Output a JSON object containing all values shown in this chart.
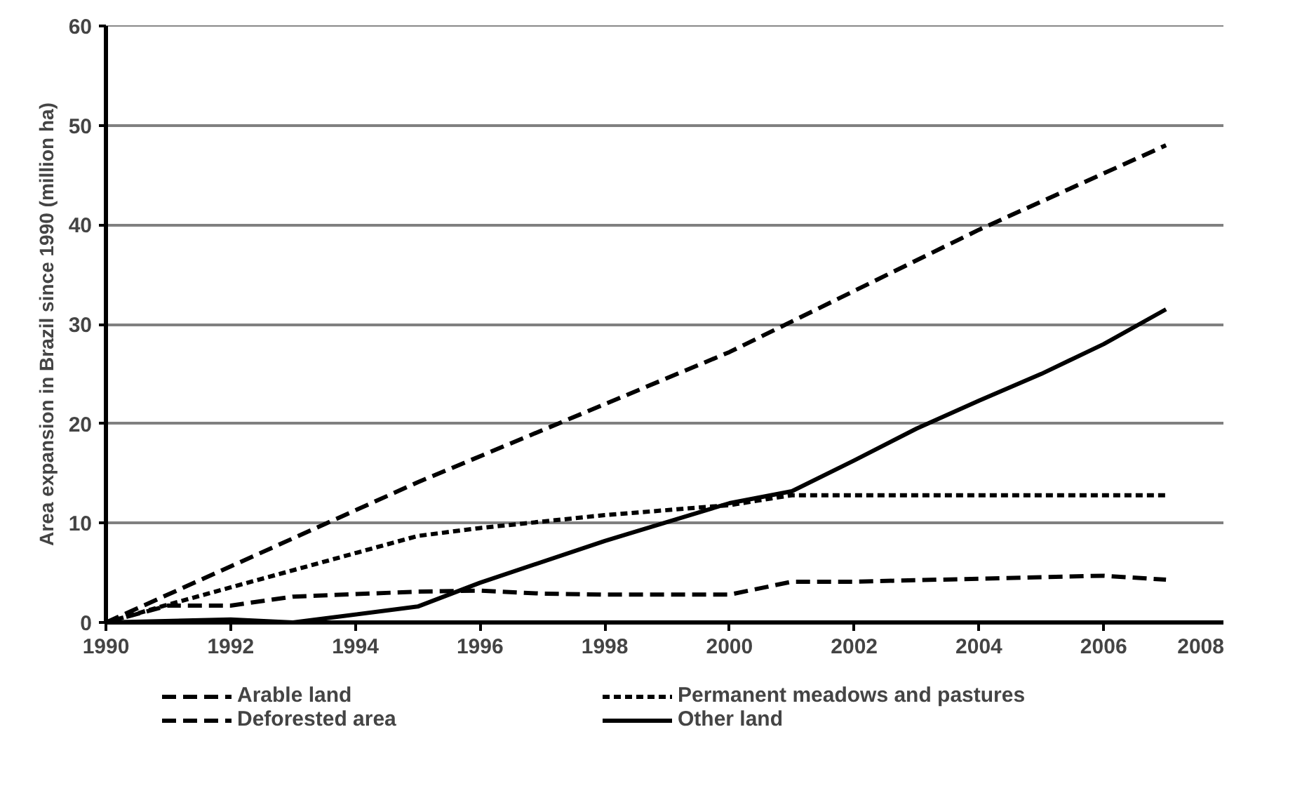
{
  "chart_data": {
    "type": "line",
    "ylabel": "Area expansion in Brazil since 1990 (million ha)",
    "xlim": [
      1990,
      2008
    ],
    "xticks": [
      1990,
      1992,
      1994,
      1996,
      1998,
      2000,
      2002,
      2004,
      2006,
      2008
    ],
    "ylim": [
      0,
      60
    ],
    "yticks": [
      0,
      10,
      20,
      30,
      40,
      50,
      60
    ],
    "grid": "y",
    "legend": "bottom",
    "marker": "none",
    "series": [
      {
        "name": "Arable land",
        "color": "#000000",
        "line_style": "dashed",
        "x": [
          1990,
          1991,
          1992,
          1993,
          1995,
          1996,
          1997,
          1998,
          2000,
          2001,
          2002,
          2004,
          2006,
          2007
        ],
        "values": [
          0,
          1.7,
          1.7,
          2.6,
          3.1,
          3.2,
          2.9,
          2.8,
          2.8,
          4.1,
          4.1,
          4.4,
          4.7,
          4.3
        ]
      },
      {
        "name": "Permanent meadows and pastures",
        "color": "#000000",
        "line_style": "dotted",
        "x": [
          1990,
          1991,
          1995,
          1996,
          1998,
          2000,
          2001,
          2007
        ],
        "values": [
          0,
          1.8,
          8.7,
          9.5,
          10.8,
          11.8,
          12.8,
          12.8
        ]
      },
      {
        "name": "Deforested area",
        "color": "#000000",
        "line_style": "dashed",
        "x": [
          1990,
          1995,
          2000,
          2004,
          2007
        ],
        "values": [
          0,
          14.1,
          27.2,
          39.5,
          48
        ]
      },
      {
        "name": "Other land",
        "color": "#000000",
        "line_style": "solid",
        "x": [
          1990,
          1992,
          1993,
          1995,
          1996,
          1998,
          2000,
          2001,
          2002,
          2003,
          2004,
          2005,
          2006,
          2007
        ],
        "values": [
          0,
          0.3,
          0,
          1.6,
          4,
          8.2,
          12,
          13.2,
          16.3,
          19.5,
          22.3,
          25,
          28,
          31.5
        ]
      }
    ]
  }
}
